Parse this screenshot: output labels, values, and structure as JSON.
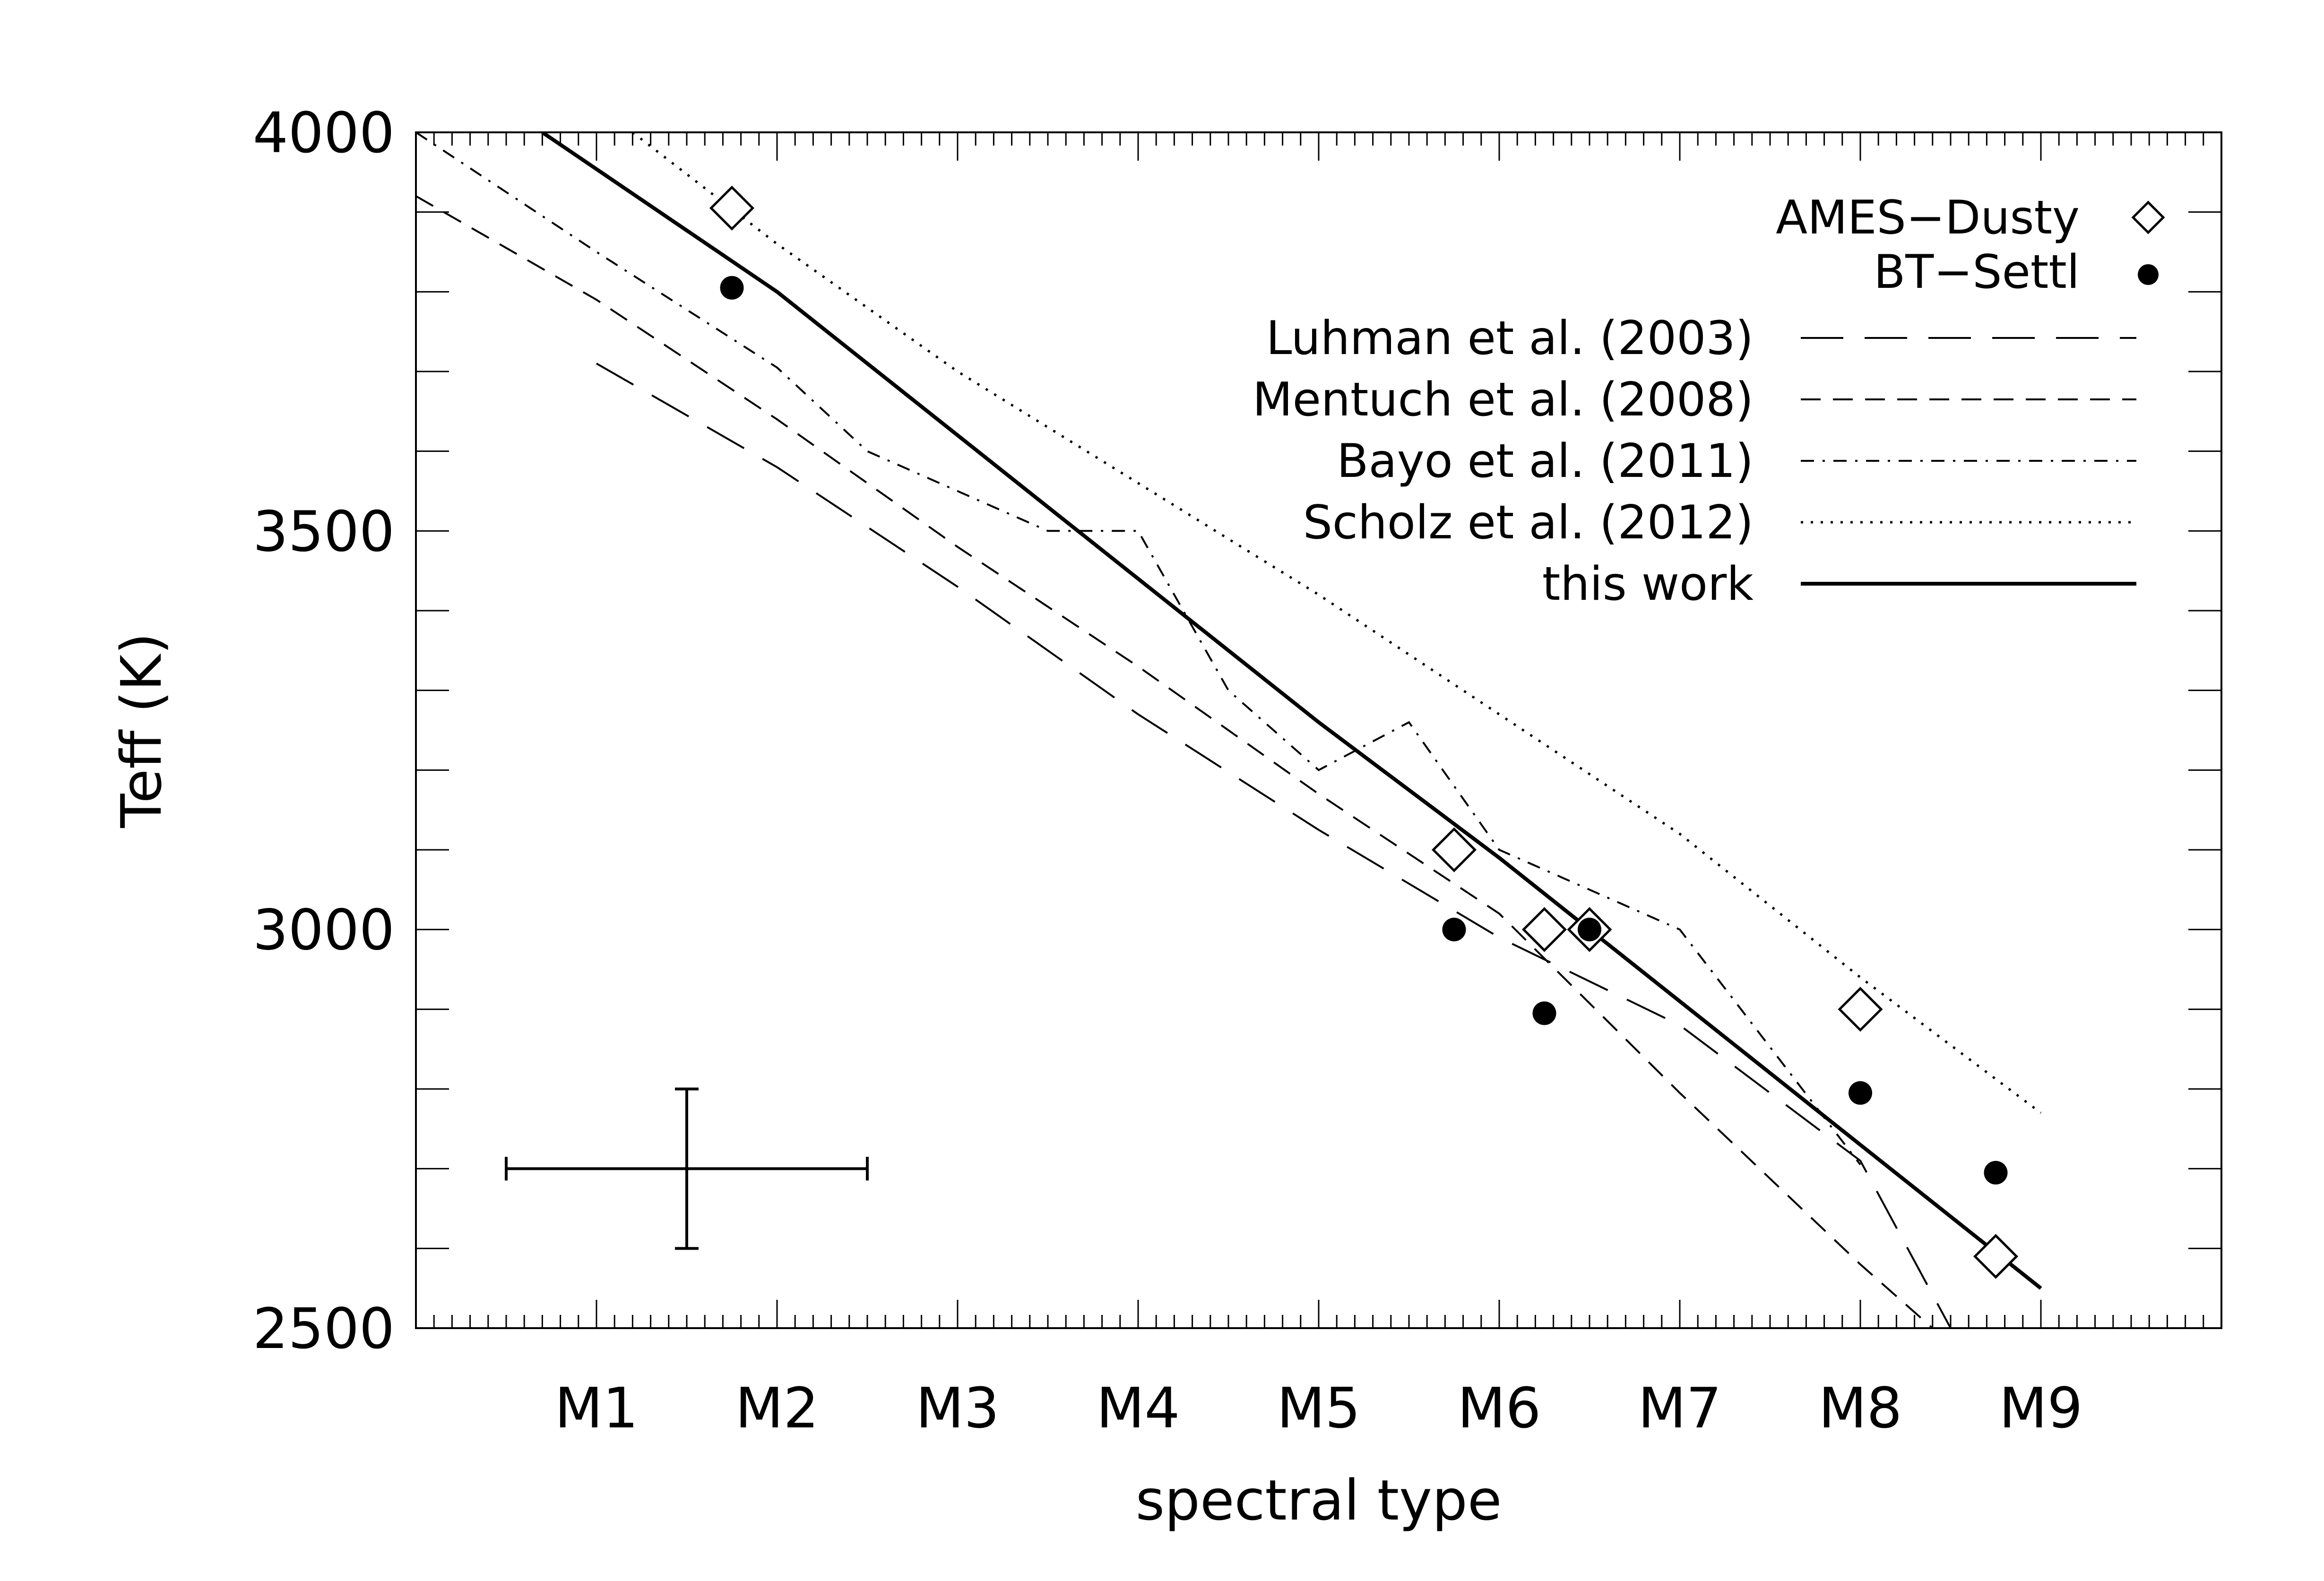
{
  "chart_data": {
    "type": "line",
    "title": "",
    "xlabel": "spectral type",
    "ylabel": "Teff (K)",
    "xlim": [
      0,
      10
    ],
    "ylim": [
      2500,
      4000
    ],
    "x_ticks": [
      {
        "value": 1,
        "label": "M1"
      },
      {
        "value": 2,
        "label": "M2"
      },
      {
        "value": 3,
        "label": "M3"
      },
      {
        "value": 4,
        "label": "M4"
      },
      {
        "value": 5,
        "label": "M5"
      },
      {
        "value": 6,
        "label": "M6"
      },
      {
        "value": 7,
        "label": "M7"
      },
      {
        "value": 8,
        "label": "M8"
      },
      {
        "value": 9,
        "label": "M9"
      }
    ],
    "y_ticks": [
      {
        "value": 2500,
        "label": "2500"
      },
      {
        "value": 3000,
        "label": "3000"
      },
      {
        "value": 3500,
        "label": "3500"
      },
      {
        "value": 4000,
        "label": "4000"
      }
    ],
    "x_minor_step": 0.1,
    "y_minor_step": 100,
    "legend_position": "top-right",
    "series": [
      {
        "name": "Luhman et al. (2003)",
        "style": "long-dash",
        "points": [
          [
            1,
            3710
          ],
          [
            2,
            3580
          ],
          [
            3,
            3430
          ],
          [
            4,
            3270
          ],
          [
            5,
            3125
          ],
          [
            6,
            2990
          ],
          [
            7,
            2880
          ],
          [
            8,
            2710
          ],
          [
            8.5,
            2500
          ]
        ]
      },
      {
        "name": "Mentuch et al. (2008)",
        "style": "dash",
        "points": [
          [
            0,
            3920
          ],
          [
            1,
            3790
          ],
          [
            2,
            3640
          ],
          [
            3,
            3480
          ],
          [
            4,
            3330
          ],
          [
            5,
            3170
          ],
          [
            6,
            3020
          ],
          [
            7,
            2795
          ],
          [
            8,
            2580
          ],
          [
            8.4,
            2500
          ]
        ]
      },
      {
        "name": "Bayo et al. (2011)",
        "style": "dash-dot",
        "points": [
          [
            0,
            4000
          ],
          [
            1,
            3850
          ],
          [
            2,
            3705
          ],
          [
            2.5,
            3600
          ],
          [
            3.5,
            3500
          ],
          [
            4,
            3500
          ],
          [
            4.5,
            3300
          ],
          [
            5,
            3200
          ],
          [
            5.5,
            3260
          ],
          [
            6,
            3100
          ],
          [
            6.5,
            3050
          ],
          [
            7,
            3000
          ],
          [
            8,
            2705
          ]
        ]
      },
      {
        "name": "Scholz et al. (2012)",
        "style": "dot",
        "points": [
          [
            1.2,
            4000
          ],
          [
            2,
            3860
          ],
          [
            3,
            3700
          ],
          [
            4,
            3560
          ],
          [
            5,
            3420
          ],
          [
            6,
            3270
          ],
          [
            7,
            3120
          ],
          [
            8,
            2940
          ],
          [
            9,
            2770
          ]
        ]
      },
      {
        "name": "this work",
        "style": "solid",
        "points": [
          [
            0.7,
            4000
          ],
          [
            2,
            3800
          ],
          [
            3,
            3620
          ],
          [
            4,
            3440
          ],
          [
            5,
            3260
          ],
          [
            6,
            3090
          ],
          [
            7,
            2910
          ],
          [
            8,
            2730
          ],
          [
            9,
            2550
          ]
        ]
      }
    ],
    "markers": [
      {
        "name": "AMES−Dusty",
        "symbol": "diamond",
        "points": [
          [
            1.75,
            3905
          ],
          [
            5.75,
            3100
          ],
          [
            6.25,
            3000
          ],
          [
            6.5,
            3000
          ],
          [
            8,
            2900
          ],
          [
            8.75,
            2590
          ]
        ]
      },
      {
        "name": "BT−Settl",
        "symbol": "filled-circle",
        "points": [
          [
            1.75,
            3805
          ],
          [
            5.75,
            3000
          ],
          [
            6.25,
            2895
          ],
          [
            6.5,
            3000
          ],
          [
            8,
            2795
          ],
          [
            8.75,
            2695
          ]
        ]
      }
    ],
    "error_bar": {
      "x": 1.5,
      "y": 2700,
      "x_err": 1.0,
      "y_err": 100
    }
  }
}
